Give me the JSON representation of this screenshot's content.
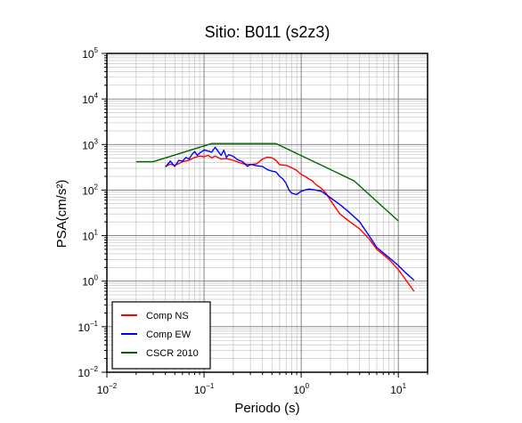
{
  "chart_data": {
    "type": "line",
    "title": "Sitio: B011 (s2z3)",
    "xlabel": "Periodo (s)",
    "ylabel": "PSA(cm/s²)",
    "xscale": "log",
    "yscale": "log",
    "xlim": [
      0.01,
      20
    ],
    "ylim": [
      0.01,
      100000
    ],
    "xticks": [
      {
        "value": 0.01,
        "base": "10",
        "exp": "−2"
      },
      {
        "value": 0.1,
        "base": "10",
        "exp": "−1"
      },
      {
        "value": 1,
        "base": "10",
        "exp": "0"
      },
      {
        "value": 10,
        "base": "10",
        "exp": "1"
      }
    ],
    "yticks": [
      {
        "value": 0.01,
        "base": "10",
        "exp": "−2"
      },
      {
        "value": 0.1,
        "base": "10",
        "exp": "−1"
      },
      {
        "value": 1,
        "base": "10",
        "exp": "0"
      },
      {
        "value": 10,
        "base": "10",
        "exp": "1"
      },
      {
        "value": 100,
        "base": "10",
        "exp": "2"
      },
      {
        "value": 1000,
        "base": "10",
        "exp": "3"
      },
      {
        "value": 10000,
        "base": "10",
        "exp": "4"
      },
      {
        "value": 100000,
        "base": "10",
        "exp": "5"
      }
    ],
    "grid": true,
    "legend_position": "bottom-left",
    "series": [
      {
        "name": "Comp NS",
        "color": "#ff0000",
        "points": [
          [
            0.04,
            330
          ],
          [
            0.045,
            370
          ],
          [
            0.05,
            350
          ],
          [
            0.055,
            380
          ],
          [
            0.06,
            420
          ],
          [
            0.07,
            450
          ],
          [
            0.08,
            520
          ],
          [
            0.09,
            560
          ],
          [
            0.1,
            540
          ],
          [
            0.11,
            580
          ],
          [
            0.12,
            510
          ],
          [
            0.13,
            560
          ],
          [
            0.15,
            480
          ],
          [
            0.17,
            490
          ],
          [
            0.2,
            450
          ],
          [
            0.22,
            420
          ],
          [
            0.25,
            380
          ],
          [
            0.3,
            360
          ],
          [
            0.35,
            380
          ],
          [
            0.4,
            480
          ],
          [
            0.45,
            530
          ],
          [
            0.5,
            510
          ],
          [
            0.55,
            450
          ],
          [
            0.6,
            360
          ],
          [
            0.7,
            350
          ],
          [
            0.8,
            310
          ],
          [
            0.9,
            270
          ],
          [
            1.0,
            220
          ],
          [
            1.1,
            200
          ],
          [
            1.2,
            175
          ],
          [
            1.3,
            160
          ],
          [
            1.4,
            135
          ],
          [
            1.6,
            110
          ],
          [
            1.8,
            85
          ],
          [
            2.0,
            60
          ],
          [
            2.5,
            30
          ],
          [
            3.0,
            22
          ],
          [
            4.0,
            14
          ],
          [
            5.0,
            8.5
          ],
          [
            6.0,
            5
          ],
          [
            8.0,
            3
          ],
          [
            10.0,
            1.8
          ],
          [
            12.0,
            1.05
          ],
          [
            14.5,
            0.6
          ]
        ]
      },
      {
        "name": "Comp EW",
        "color": "#0000ff",
        "points": [
          [
            0.04,
            320
          ],
          [
            0.045,
            430
          ],
          [
            0.05,
            330
          ],
          [
            0.055,
            450
          ],
          [
            0.06,
            430
          ],
          [
            0.065,
            520
          ],
          [
            0.07,
            480
          ],
          [
            0.075,
            600
          ],
          [
            0.08,
            700
          ],
          [
            0.085,
            580
          ],
          [
            0.09,
            650
          ],
          [
            0.1,
            760
          ],
          [
            0.11,
            720
          ],
          [
            0.12,
            680
          ],
          [
            0.13,
            870
          ],
          [
            0.14,
            700
          ],
          [
            0.15,
            580
          ],
          [
            0.16,
            750
          ],
          [
            0.17,
            520
          ],
          [
            0.18,
            600
          ],
          [
            0.2,
            550
          ],
          [
            0.22,
            470
          ],
          [
            0.25,
            420
          ],
          [
            0.28,
            330
          ],
          [
            0.3,
            370
          ],
          [
            0.35,
            340
          ],
          [
            0.4,
            330
          ],
          [
            0.45,
            280
          ],
          [
            0.5,
            260
          ],
          [
            0.55,
            250
          ],
          [
            0.6,
            200
          ],
          [
            0.65,
            175
          ],
          [
            0.7,
            140
          ],
          [
            0.75,
            100
          ],
          [
            0.8,
            85
          ],
          [
            0.9,
            80
          ],
          [
            1.0,
            95
          ],
          [
            1.2,
            105
          ],
          [
            1.4,
            100
          ],
          [
            1.6,
            95
          ],
          [
            1.8,
            80
          ],
          [
            2.0,
            68
          ],
          [
            2.5,
            48
          ],
          [
            3.0,
            35
          ],
          [
            3.5,
            26
          ],
          [
            4.0,
            20
          ],
          [
            5.0,
            10
          ],
          [
            6.0,
            5.5
          ],
          [
            8.0,
            3.3
          ],
          [
            10.0,
            2.2
          ],
          [
            12.0,
            1.5
          ],
          [
            14.5,
            1.05
          ]
        ]
      },
      {
        "name": "CSCR 2010",
        "color": "#006400",
        "points": [
          [
            0.02,
            420
          ],
          [
            0.03,
            420
          ],
          [
            0.12,
            1050
          ],
          [
            0.55,
            1050
          ],
          [
            3.5,
            160
          ],
          [
            10.0,
            21
          ]
        ]
      }
    ]
  }
}
